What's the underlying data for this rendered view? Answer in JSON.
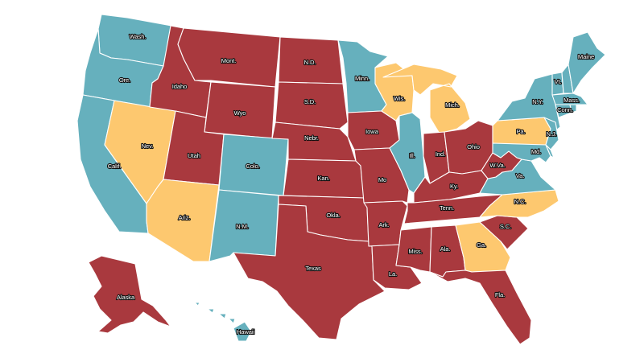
{
  "colors": {
    "red": "#a9393e",
    "teal": "#66b0bd",
    "yellow": "#fdc86f"
  },
  "states": [
    {
      "id": "WA",
      "label": "Wash.",
      "color": "teal"
    },
    {
      "id": "OR",
      "label": "Ore.",
      "color": "teal"
    },
    {
      "id": "CA",
      "label": "Calif.",
      "color": "teal"
    },
    {
      "id": "NV",
      "label": "Nev.",
      "color": "yellow"
    },
    {
      "id": "ID",
      "label": "Idaho",
      "color": "red"
    },
    {
      "id": "MT",
      "label": "Mont.",
      "color": "red"
    },
    {
      "id": "WY",
      "label": "Wyo",
      "color": "red"
    },
    {
      "id": "UT",
      "label": "Utah",
      "color": "red"
    },
    {
      "id": "AZ",
      "label": "Ariz.",
      "color": "yellow"
    },
    {
      "id": "CO",
      "label": "Colo.",
      "color": "teal"
    },
    {
      "id": "NM",
      "label": "N.M.",
      "color": "teal"
    },
    {
      "id": "ND",
      "label": "N.D.",
      "color": "red"
    },
    {
      "id": "SD",
      "label": "S.D.",
      "color": "red"
    },
    {
      "id": "NE",
      "label": "Nebr.",
      "color": "red"
    },
    {
      "id": "KS",
      "label": "Kan.",
      "color": "red"
    },
    {
      "id": "OK",
      "label": "Okla.",
      "color": "red"
    },
    {
      "id": "TX",
      "label": "Texas",
      "color": "red"
    },
    {
      "id": "MN",
      "label": "Minn.",
      "color": "teal"
    },
    {
      "id": "IA",
      "label": "Iowa",
      "color": "red"
    },
    {
      "id": "MO",
      "label": "Mo",
      "color": "red"
    },
    {
      "id": "AR",
      "label": "Ark.",
      "color": "red"
    },
    {
      "id": "LA",
      "label": "La.",
      "color": "red"
    },
    {
      "id": "WI",
      "label": "Wis.",
      "color": "yellow"
    },
    {
      "id": "IL",
      "label": "Ill.",
      "color": "teal"
    },
    {
      "id": "MI",
      "label": "Mich.",
      "color": "yellow"
    },
    {
      "id": "IN",
      "label": "Ind.",
      "color": "red"
    },
    {
      "id": "OH",
      "label": "Ohio",
      "color": "red"
    },
    {
      "id": "KY",
      "label": "Ky.",
      "color": "red"
    },
    {
      "id": "TN",
      "label": "Tenn.",
      "color": "red"
    },
    {
      "id": "MS",
      "label": "Miss.",
      "color": "red"
    },
    {
      "id": "AL",
      "label": "Ala.",
      "color": "red"
    },
    {
      "id": "GA",
      "label": "Ga.",
      "color": "yellow"
    },
    {
      "id": "FL",
      "label": "Fla.",
      "color": "red"
    },
    {
      "id": "SC",
      "label": "S.C.",
      "color": "red"
    },
    {
      "id": "NC",
      "label": "N.C.",
      "color": "yellow"
    },
    {
      "id": "VA",
      "label": "Va.",
      "color": "teal"
    },
    {
      "id": "WV",
      "label": "W.Va.",
      "color": "red"
    },
    {
      "id": "PA",
      "label": "Pa.",
      "color": "yellow"
    },
    {
      "id": "NY",
      "label": "N.Y.",
      "color": "teal"
    },
    {
      "id": "NJ",
      "label": "N.J.",
      "color": "teal"
    },
    {
      "id": "MD",
      "label": "Md.",
      "color": "teal"
    },
    {
      "id": "DE",
      "label": "",
      "color": "teal"
    },
    {
      "id": "CT",
      "label": "Conn.",
      "color": "teal"
    },
    {
      "id": "RI",
      "label": "",
      "color": "teal"
    },
    {
      "id": "MA",
      "label": "Mass.",
      "color": "teal"
    },
    {
      "id": "VT",
      "label": "Vt.",
      "color": "teal"
    },
    {
      "id": "NH",
      "label": "",
      "color": "teal"
    },
    {
      "id": "ME",
      "label": "Maine",
      "color": "teal"
    },
    {
      "id": "AK",
      "label": "Alaska",
      "color": "red"
    },
    {
      "id": "HI",
      "label": "Hawaii",
      "color": "teal"
    }
  ]
}
